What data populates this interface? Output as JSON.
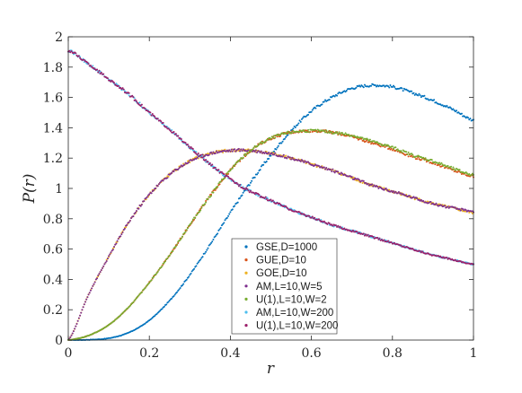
{
  "chart_data": {
    "type": "scatter",
    "title": "",
    "xlabel": "r",
    "ylabel": "P(r)",
    "xlim": [
      0,
      1
    ],
    "ylim": [
      0,
      2
    ],
    "xticks": [
      0,
      0.2,
      0.4,
      0.6,
      0.8,
      1
    ],
    "xtick_labels": [
      "0",
      "0.2",
      "0.4",
      "0.6",
      "0.8",
      "1"
    ],
    "yticks": [
      0,
      0.2,
      0.4,
      0.6,
      0.8,
      1,
      1.2,
      1.4,
      1.6,
      1.8,
      2
    ],
    "ytick_labels": [
      "0",
      "0.2",
      "0.4",
      "0.6",
      "0.8",
      "1",
      "1.2",
      "1.4",
      "1.6",
      "1.8",
      "2"
    ],
    "grid": false,
    "legend_position": "bottom-center",
    "series": [
      {
        "name": "GSE,D=1000",
        "color": "#0072BD",
        "x": [
          0,
          0.05,
          0.1,
          0.15,
          0.2,
          0.25,
          0.3,
          0.35,
          0.4,
          0.45,
          0.5,
          0.55,
          0.6,
          0.65,
          0.7,
          0.75,
          0.8,
          0.85,
          0.9,
          0.95,
          1
        ],
        "y": [
          0,
          0.002,
          0.012,
          0.05,
          0.13,
          0.26,
          0.43,
          0.63,
          0.84,
          1.04,
          1.22,
          1.38,
          1.51,
          1.6,
          1.66,
          1.68,
          1.67,
          1.63,
          1.58,
          1.52,
          1.45
        ]
      },
      {
        "name": "GUE,D=10",
        "color": "#D95319",
        "x": [
          0,
          0.05,
          0.1,
          0.15,
          0.2,
          0.25,
          0.3,
          0.35,
          0.4,
          0.45,
          0.5,
          0.55,
          0.6,
          0.65,
          0.7,
          0.75,
          0.8,
          0.85,
          0.9,
          0.95,
          1
        ],
        "y": [
          0,
          0.03,
          0.1,
          0.22,
          0.38,
          0.56,
          0.76,
          0.95,
          1.12,
          1.25,
          1.33,
          1.37,
          1.38,
          1.37,
          1.34,
          1.3,
          1.26,
          1.21,
          1.17,
          1.12,
          1.08
        ]
      },
      {
        "name": "GOE,D=10",
        "color": "#EDB120",
        "x": [
          0,
          0.05,
          0.1,
          0.15,
          0.2,
          0.25,
          0.3,
          0.35,
          0.4,
          0.45,
          0.5,
          0.55,
          0.6,
          0.65,
          0.7,
          0.75,
          0.8,
          0.85,
          0.9,
          0.95,
          1
        ],
        "y": [
          0,
          0.3,
          0.55,
          0.78,
          0.96,
          1.09,
          1.18,
          1.23,
          1.25,
          1.25,
          1.23,
          1.2,
          1.16,
          1.12,
          1.07,
          1.02,
          0.98,
          0.94,
          0.9,
          0.87,
          0.84
        ]
      },
      {
        "name": "AM,L=10,W=5",
        "color": "#7E2F8E",
        "x": [
          0,
          0.05,
          0.1,
          0.15,
          0.2,
          0.25,
          0.3,
          0.35,
          0.4,
          0.45,
          0.5,
          0.55,
          0.6,
          0.65,
          0.7,
          0.75,
          0.8,
          0.85,
          0.9,
          0.95,
          1
        ],
        "y": [
          0,
          0.3,
          0.55,
          0.78,
          0.96,
          1.09,
          1.18,
          1.23,
          1.25,
          1.25,
          1.23,
          1.2,
          1.16,
          1.12,
          1.07,
          1.02,
          0.98,
          0.94,
          0.9,
          0.87,
          0.85
        ]
      },
      {
        "name": "U(1),L=10,W=2",
        "color": "#77AC30",
        "x": [
          0,
          0.05,
          0.1,
          0.15,
          0.2,
          0.25,
          0.3,
          0.35,
          0.4,
          0.45,
          0.5,
          0.55,
          0.6,
          0.65,
          0.7,
          0.75,
          0.8,
          0.85,
          0.9,
          0.95,
          1
        ],
        "y": [
          0,
          0.03,
          0.1,
          0.22,
          0.38,
          0.56,
          0.76,
          0.95,
          1.12,
          1.25,
          1.33,
          1.37,
          1.38,
          1.37,
          1.35,
          1.31,
          1.27,
          1.22,
          1.18,
          1.13,
          1.09
        ]
      },
      {
        "name": "AM,L=10,W=200",
        "color": "#4DBEEE",
        "x": [
          0,
          0.05,
          0.1,
          0.15,
          0.2,
          0.25,
          0.3,
          0.35,
          0.4,
          0.45,
          0.5,
          0.55,
          0.6,
          0.65,
          0.7,
          0.75,
          0.8,
          0.85,
          0.9,
          0.95,
          1
        ],
        "y": [
          1.91,
          1.82,
          1.72,
          1.62,
          1.5,
          1.39,
          1.27,
          1.16,
          1.06,
          0.98,
          0.92,
          0.86,
          0.81,
          0.76,
          0.72,
          0.68,
          0.64,
          0.6,
          0.56,
          0.53,
          0.5
        ]
      },
      {
        "name": "U(1),L=10,W=200",
        "color": "#9B1F6A",
        "x": [
          0,
          0.05,
          0.1,
          0.15,
          0.2,
          0.25,
          0.3,
          0.35,
          0.4,
          0.45,
          0.5,
          0.55,
          0.6,
          0.65,
          0.7,
          0.75,
          0.8,
          0.85,
          0.9,
          0.95,
          1
        ],
        "y": [
          1.91,
          1.82,
          1.72,
          1.62,
          1.5,
          1.39,
          1.27,
          1.16,
          1.06,
          0.98,
          0.92,
          0.86,
          0.81,
          0.76,
          0.72,
          0.68,
          0.64,
          0.6,
          0.56,
          0.53,
          0.5
        ]
      }
    ]
  }
}
